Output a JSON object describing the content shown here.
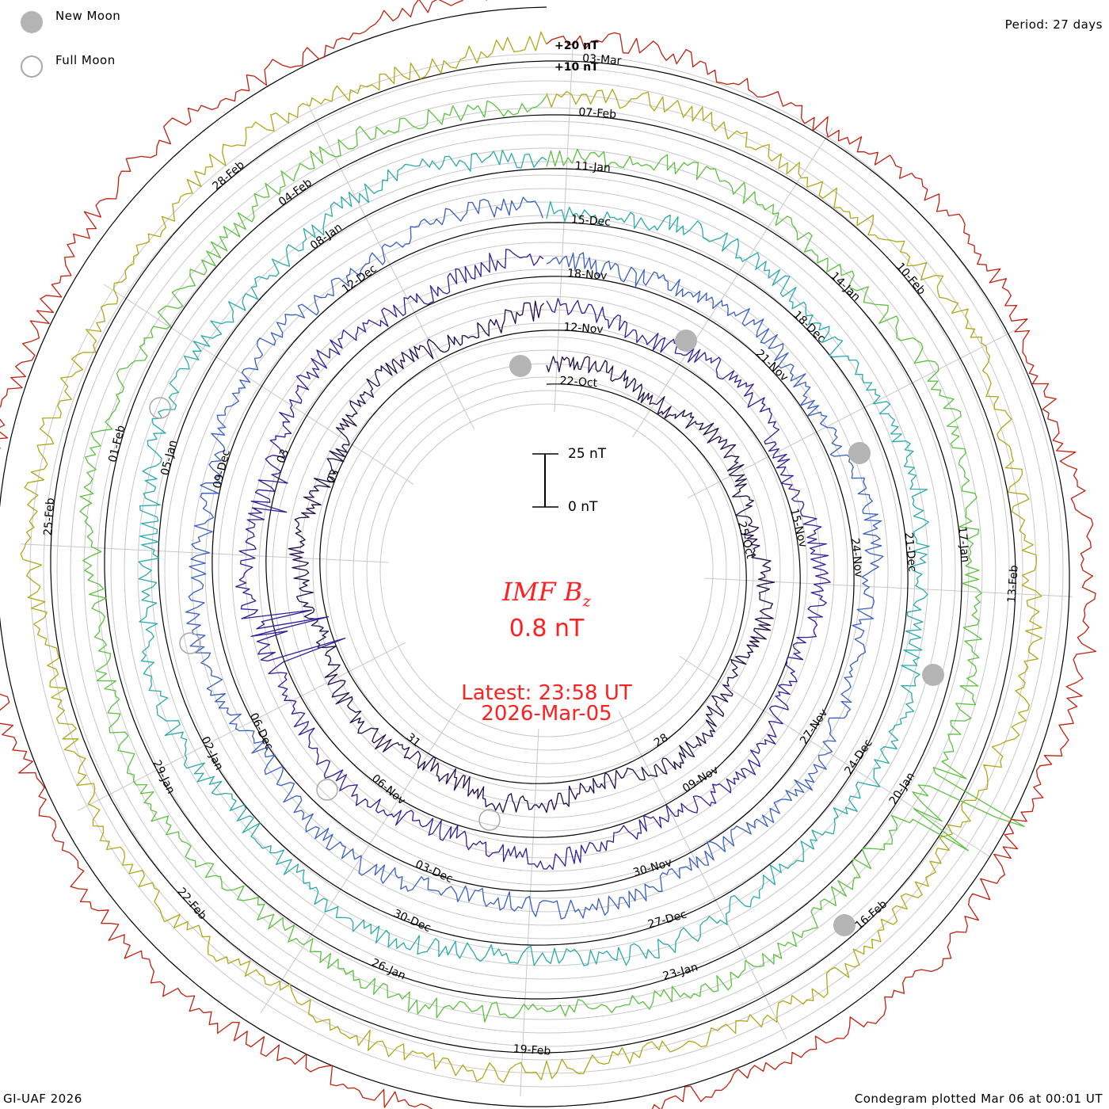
{
  "header": {
    "period": "Period: 27 days"
  },
  "legend": {
    "new_moon": "New Moon",
    "full_moon": "Full Moon"
  },
  "footer": {
    "credit": "GI-UAF 2026",
    "plotted": "Condegram plotted Mar 06 at 00:01 UT"
  },
  "center": {
    "title": "IMF B",
    "subscript": "z",
    "value": "0.8 nT",
    "latest": "Latest: 23:58 UT",
    "date": "2026-Mar-05"
  },
  "scale_bar": {
    "top": "25 nT",
    "bottom": "0 nT"
  },
  "chart_data": {
    "type": "line",
    "title": "IMF Bz condegram",
    "period_days": 27,
    "ring_labels": [
      "+20 nT",
      "+10 nT"
    ],
    "start_date_label": "22-Oct",
    "end_date_label": "2026-Mar-05",
    "series": [
      {
        "name": "Oct-Nov",
        "color": "#1d0d4a",
        "date_labels": [
          "22-Oct",
          "25-Oct",
          "28",
          "31",
          "03"
        ],
        "note": "innermost spiral turn"
      },
      {
        "name": "Nov",
        "color": "#2d1f9a",
        "date_labels": [
          "12-Nov",
          "15-Nov",
          "09-Nov",
          "06-Nov",
          "03"
        ]
      },
      {
        "name": "Nov-Dec",
        "color": "#3a5fc4",
        "date_labels": [
          "18-Nov",
          "21-Nov",
          "24-Nov",
          "27-Nov",
          "30-Nov",
          "03-Dec",
          "06-Dec",
          "09-Dec",
          "12-Dec"
        ]
      },
      {
        "name": "Dec",
        "color": "#2aaaaa",
        "date_labels": [
          "15-Dec",
          "18-Dec",
          "21-Dec",
          "24-Dec",
          "27-Dec",
          "30-Dec",
          "02-Jan",
          "05-Jan",
          "08-Jan"
        ]
      },
      {
        "name": "Jan",
        "color": "#5cc040",
        "date_labels": [
          "11-Jan",
          "14-Jan",
          "17-Jan",
          "20-Jan",
          "23-Jan",
          "26-Jan",
          "29-Jan",
          "01-Feb",
          "04-Feb"
        ]
      },
      {
        "name": "Jan-Feb",
        "color": "#b0a81a",
        "date_labels": [
          "07-Feb",
          "10-Feb",
          "13-Feb",
          "16-Feb",
          "19-Feb",
          "22-Feb",
          "25-Feb",
          "28-Feb"
        ]
      },
      {
        "name": "Feb-Mar",
        "color": "#c02010",
        "date_labels": [
          "03-Mar"
        ],
        "note": "outermost, most recent turn"
      }
    ],
    "current_value_nT": 0.8,
    "annotations": [
      {
        "text": "New Moon markers",
        "count": 5
      },
      {
        "text": "Full Moon markers",
        "count": 5
      }
    ]
  }
}
